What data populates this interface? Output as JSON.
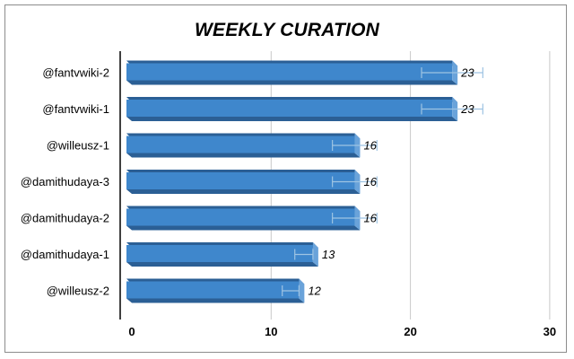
{
  "chart_data": {
    "type": "bar",
    "orientation": "horizontal",
    "title": "WEEKLY CURATION",
    "xlabel": "",
    "ylabel": "",
    "categories": [
      "@fantvwiki-2",
      "@fantvwiki-1",
      "@willeusz-1",
      "@damithudaya-3",
      "@damithudaya-2",
      "@damithudaya-1",
      "@willeusz-2"
    ],
    "values": [
      23,
      23,
      16,
      16,
      16,
      13,
      12
    ],
    "error_bars": [
      [
        20.8,
        25.2
      ],
      [
        20.8,
        25.2
      ],
      [
        14.4,
        17.6
      ],
      [
        14.4,
        17.6
      ],
      [
        14.4,
        17.6
      ],
      [
        11.7,
        13.0
      ],
      [
        10.8,
        12.0
      ]
    ],
    "xlim": [
      0,
      30
    ],
    "xticks": [
      0,
      10,
      20,
      30
    ],
    "grid": true,
    "legend": "none",
    "colors": {
      "bar_face": "#3f87cc",
      "bar_top": "#2b5f95",
      "bar_side": "#6aa3da",
      "grid": "#c8c8c8",
      "axis": "#000000",
      "error_bar": "#9ec4e3"
    }
  }
}
